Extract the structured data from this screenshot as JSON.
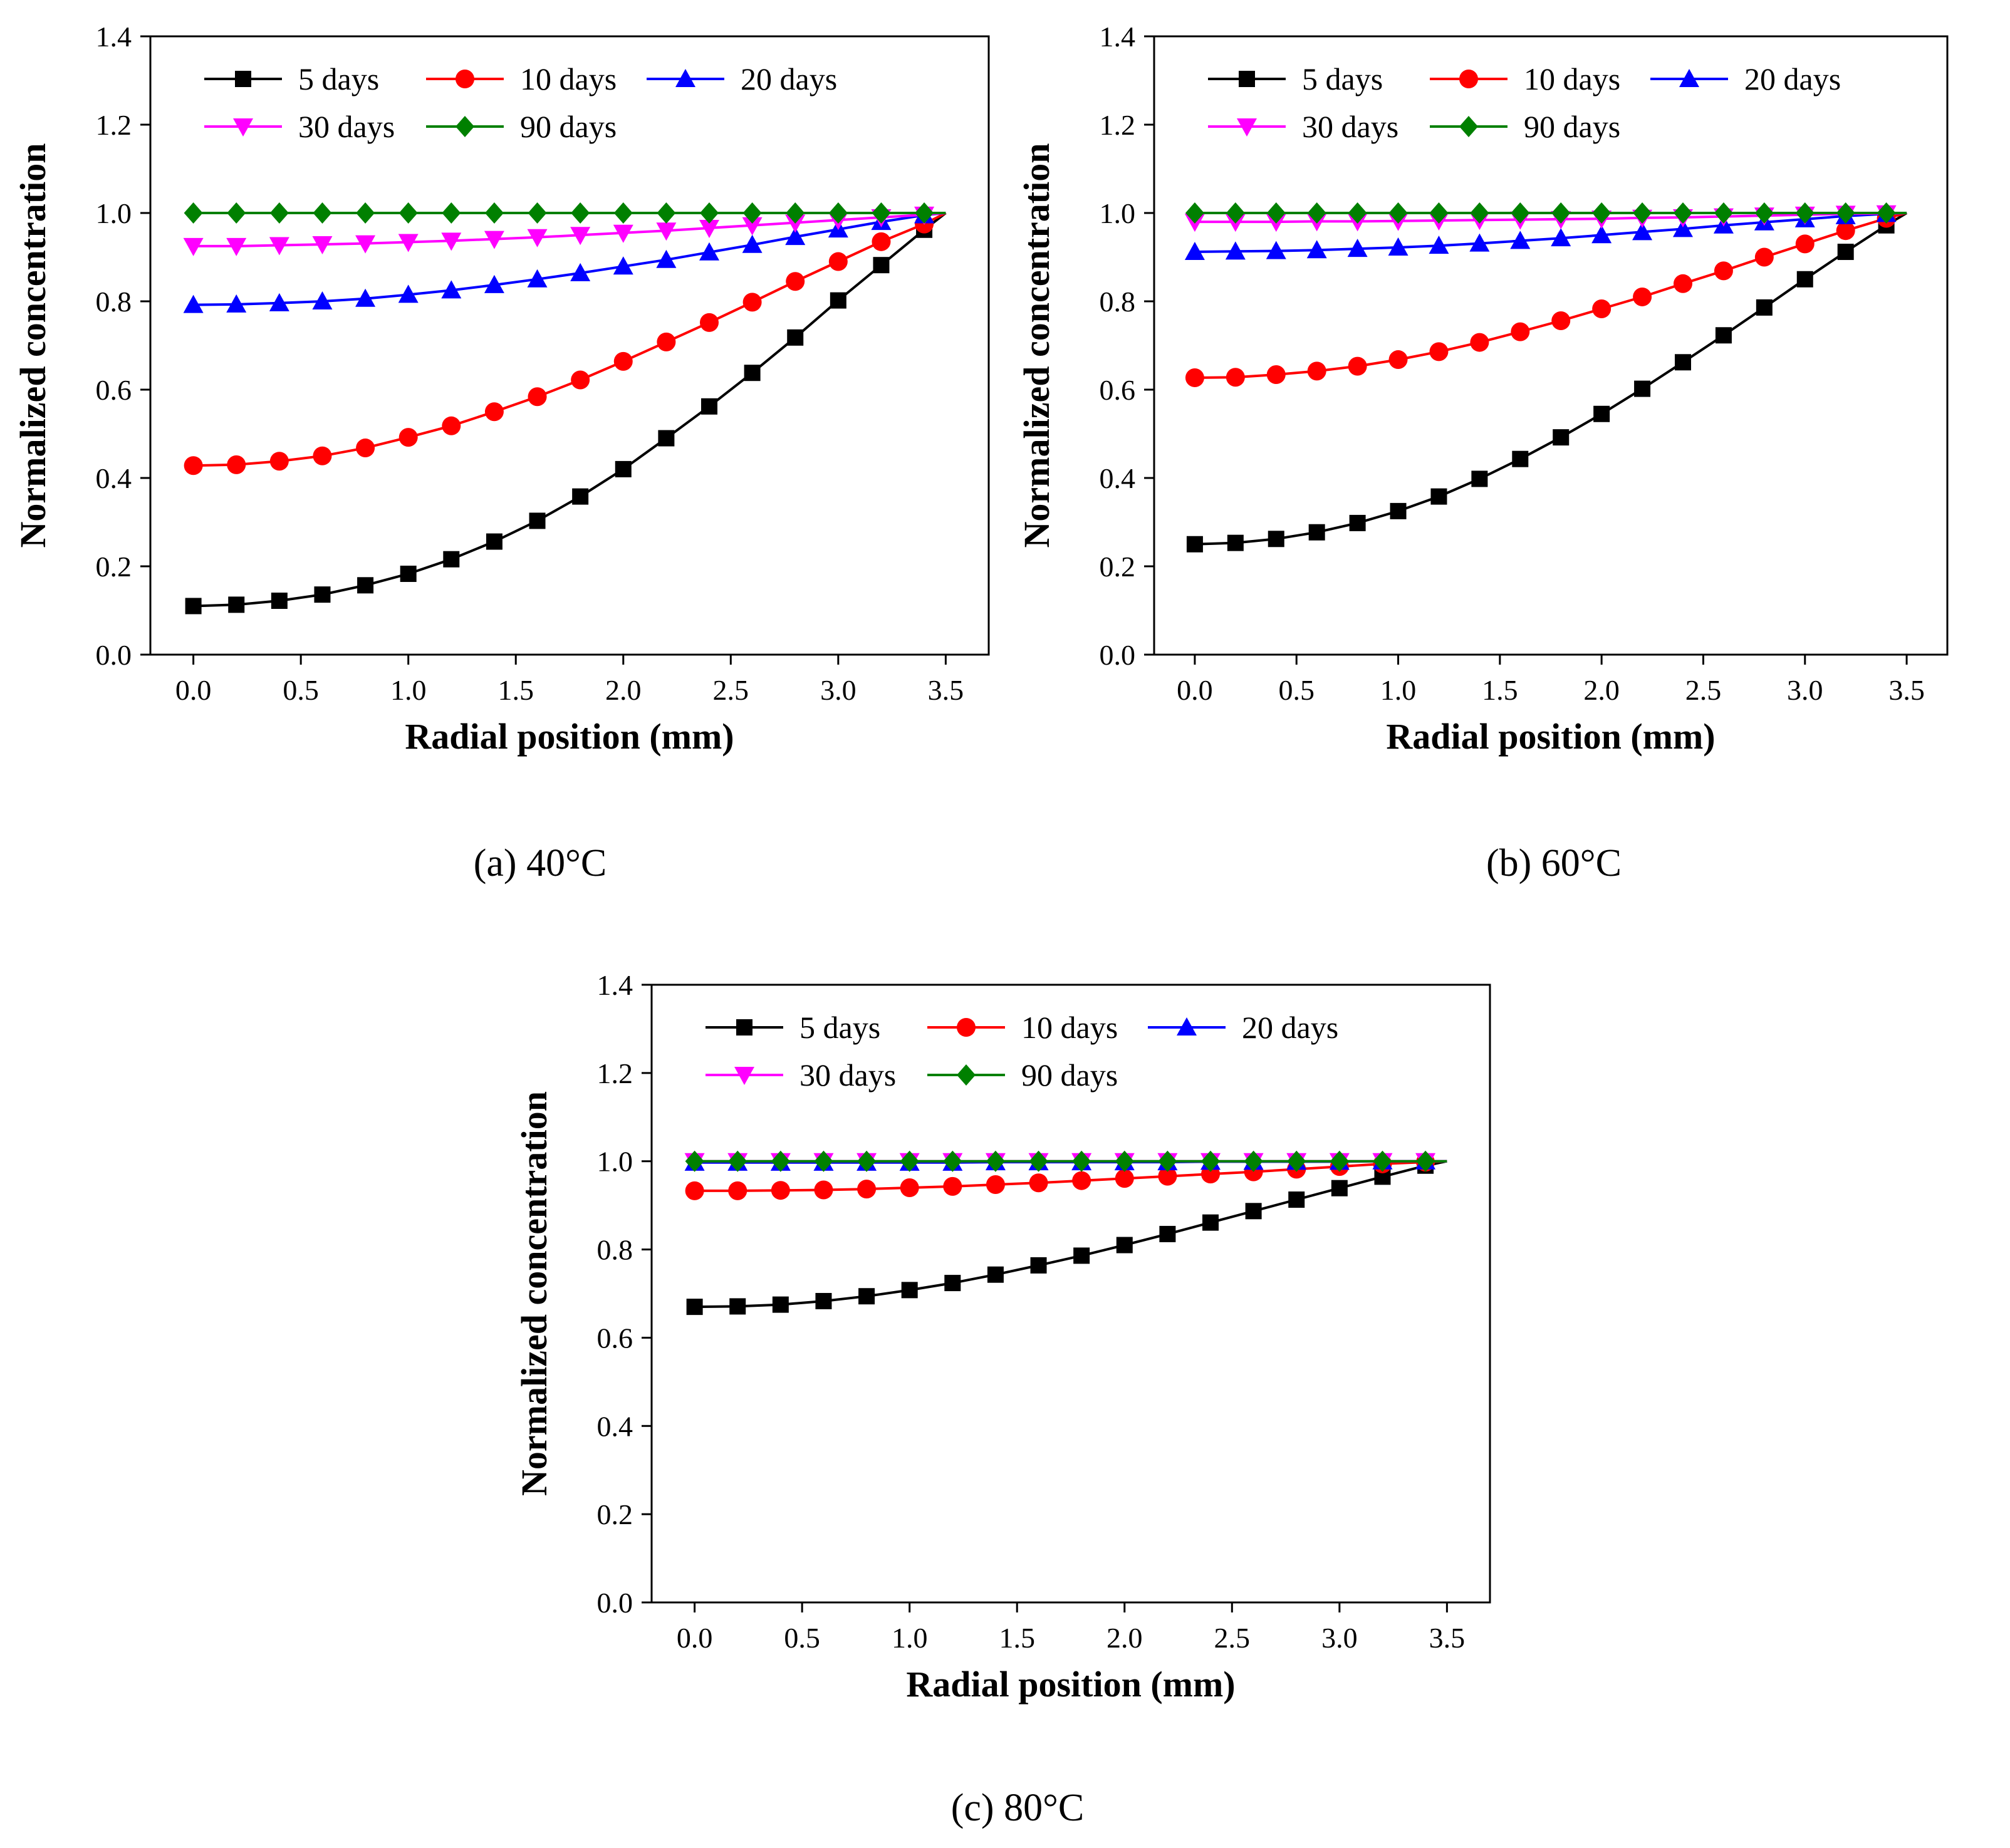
{
  "chart_data": [
    {
      "type": "line",
      "caption": "(a) 40°C",
      "xlabel": "Radial position (mm)",
      "ylabel": "Normalized concentration",
      "xlim": [
        -0.2,
        3.7
      ],
      "ylim": [
        0.0,
        1.4
      ],
      "xticks": [
        "0.0",
        "0.5",
        "1.0",
        "1.5",
        "2.0",
        "2.5",
        "3.0",
        "3.5"
      ],
      "yticks": [
        "0.0",
        "0.2",
        "0.4",
        "0.6",
        "0.8",
        "1.0",
        "1.2",
        "1.4"
      ],
      "legend_position": "top",
      "x": [
        0.0,
        0.2,
        0.4,
        0.6,
        0.8,
        1.0,
        1.2,
        1.4,
        1.6,
        1.8,
        2.0,
        2.2,
        2.4,
        2.6,
        2.8,
        3.0,
        3.2,
        3.4,
        3.5
      ],
      "series": [
        {
          "name": "5 days",
          "color": "#000000",
          "marker": "square",
          "values": [
            0.11,
            0.113,
            0.122,
            0.136,
            0.157,
            0.183,
            0.216,
            0.256,
            0.303,
            0.358,
            0.42,
            0.49,
            0.562,
            0.638,
            0.718,
            0.802,
            0.882,
            0.962,
            1.0
          ]
        },
        {
          "name": "10 days",
          "color": "#ff0000",
          "marker": "circle",
          "values": [
            0.428,
            0.43,
            0.438,
            0.45,
            0.468,
            0.492,
            0.518,
            0.55,
            0.584,
            0.622,
            0.664,
            0.708,
            0.752,
            0.798,
            0.845,
            0.89,
            0.935,
            0.975,
            1.0
          ]
        },
        {
          "name": "20 days",
          "color": "#0000ff",
          "marker": "triangle-up",
          "values": [
            0.792,
            0.793,
            0.796,
            0.8,
            0.806,
            0.815,
            0.825,
            0.837,
            0.85,
            0.864,
            0.879,
            0.894,
            0.911,
            0.928,
            0.946,
            0.963,
            0.98,
            0.995,
            1.0
          ]
        },
        {
          "name": "30 days",
          "color": "#ff00ff",
          "marker": "triangle-down",
          "values": [
            0.925,
            0.925,
            0.927,
            0.929,
            0.931,
            0.934,
            0.937,
            0.941,
            0.945,
            0.95,
            0.955,
            0.96,
            0.966,
            0.972,
            0.978,
            0.984,
            0.99,
            0.996,
            1.0
          ]
        },
        {
          "name": "90 days",
          "color": "#008000",
          "marker": "diamond",
          "values": [
            1.0,
            1.0,
            1.0,
            1.0,
            1.0,
            1.0,
            1.0,
            1.0,
            1.0,
            1.0,
            1.0,
            1.0,
            1.0,
            1.0,
            1.0,
            1.0,
            1.0,
            1.0,
            1.0
          ]
        }
      ]
    },
    {
      "type": "line",
      "caption": "(b) 60°C",
      "xlabel": "Radial position (mm)",
      "ylabel": "Normalized concentration",
      "xlim": [
        -0.2,
        3.7
      ],
      "ylim": [
        0.0,
        1.4
      ],
      "xticks": [
        "0.0",
        "0.5",
        "1.0",
        "1.5",
        "2.0",
        "2.5",
        "3.0",
        "3.5"
      ],
      "yticks": [
        "0.0",
        "0.2",
        "0.4",
        "0.6",
        "0.8",
        "1.0",
        "1.2",
        "1.4"
      ],
      "legend_position": "top",
      "x": [
        0.0,
        0.2,
        0.4,
        0.6,
        0.8,
        1.0,
        1.2,
        1.4,
        1.6,
        1.8,
        2.0,
        2.2,
        2.4,
        2.6,
        2.8,
        3.0,
        3.2,
        3.4,
        3.5
      ],
      "series": [
        {
          "name": "5 days",
          "color": "#000000",
          "marker": "square",
          "values": [
            0.25,
            0.253,
            0.262,
            0.277,
            0.298,
            0.325,
            0.358,
            0.398,
            0.443,
            0.492,
            0.545,
            0.602,
            0.662,
            0.723,
            0.786,
            0.85,
            0.912,
            0.972,
            1.0
          ]
        },
        {
          "name": "10 days",
          "color": "#ff0000",
          "marker": "circle",
          "values": [
            0.627,
            0.628,
            0.634,
            0.642,
            0.653,
            0.668,
            0.686,
            0.707,
            0.731,
            0.756,
            0.783,
            0.81,
            0.84,
            0.869,
            0.9,
            0.93,
            0.96,
            0.988,
            1.0
          ]
        },
        {
          "name": "20 days",
          "color": "#0000ff",
          "marker": "triangle-up",
          "values": [
            0.912,
            0.913,
            0.914,
            0.916,
            0.919,
            0.922,
            0.926,
            0.931,
            0.937,
            0.943,
            0.95,
            0.957,
            0.964,
            0.972,
            0.979,
            0.986,
            0.993,
            0.998,
            1.0
          ]
        },
        {
          "name": "30 days",
          "color": "#ff00ff",
          "marker": "triangle-down",
          "values": [
            0.98,
            0.98,
            0.98,
            0.981,
            0.981,
            0.982,
            0.983,
            0.984,
            0.985,
            0.986,
            0.987,
            0.989,
            0.99,
            0.992,
            0.994,
            0.996,
            0.998,
            0.999,
            1.0
          ]
        },
        {
          "name": "90 days",
          "color": "#008000",
          "marker": "diamond",
          "values": [
            1.0,
            1.0,
            1.0,
            1.0,
            1.0,
            1.0,
            1.0,
            1.0,
            1.0,
            1.0,
            1.0,
            1.0,
            1.0,
            1.0,
            1.0,
            1.0,
            1.0,
            1.0,
            1.0
          ]
        }
      ]
    },
    {
      "type": "line",
      "caption": "(c) 80°C",
      "xlabel": "Radial position (mm)",
      "ylabel": "Normalized concentration",
      "xlim": [
        -0.2,
        3.7
      ],
      "ylim": [
        0.0,
        1.4
      ],
      "xticks": [
        "0.0",
        "0.5",
        "1.0",
        "1.5",
        "2.0",
        "2.5",
        "3.0",
        "3.5"
      ],
      "yticks": [
        "0.0",
        "0.2",
        "0.4",
        "0.6",
        "0.8",
        "1.0",
        "1.2",
        "1.4"
      ],
      "legend_position": "top",
      "x": [
        0.0,
        0.2,
        0.4,
        0.6,
        0.8,
        1.0,
        1.2,
        1.4,
        1.6,
        1.8,
        2.0,
        2.2,
        2.4,
        2.6,
        2.8,
        3.0,
        3.2,
        3.4,
        3.5
      ],
      "series": [
        {
          "name": "5 days",
          "color": "#000000",
          "marker": "square",
          "values": [
            0.67,
            0.671,
            0.675,
            0.683,
            0.694,
            0.708,
            0.724,
            0.743,
            0.764,
            0.786,
            0.81,
            0.835,
            0.861,
            0.887,
            0.913,
            0.939,
            0.965,
            0.99,
            1.0
          ]
        },
        {
          "name": "10 days",
          "color": "#ff0000",
          "marker": "circle",
          "values": [
            0.933,
            0.933,
            0.934,
            0.935,
            0.937,
            0.94,
            0.943,
            0.947,
            0.951,
            0.956,
            0.961,
            0.966,
            0.971,
            0.976,
            0.982,
            0.988,
            0.994,
            0.998,
            1.0
          ]
        },
        {
          "name": "20 days",
          "color": "#0000ff",
          "marker": "triangle-up",
          "values": [
            0.997,
            0.997,
            0.997,
            0.997,
            0.997,
            0.997,
            0.997,
            0.998,
            0.998,
            0.998,
            0.998,
            0.998,
            0.999,
            0.999,
            0.999,
            0.999,
            1.0,
            1.0,
            1.0
          ]
        },
        {
          "name": "30 days",
          "color": "#ff00ff",
          "marker": "triangle-down",
          "values": [
            1.0,
            1.0,
            1.0,
            1.0,
            1.0,
            1.0,
            1.0,
            1.0,
            1.0,
            1.0,
            1.0,
            1.0,
            1.0,
            1.0,
            1.0,
            1.0,
            1.0,
            1.0,
            1.0
          ]
        },
        {
          "name": "90 days",
          "color": "#008000",
          "marker": "diamond",
          "values": [
            1.0,
            1.0,
            1.0,
            1.0,
            1.0,
            1.0,
            1.0,
            1.0,
            1.0,
            1.0,
            1.0,
            1.0,
            1.0,
            1.0,
            1.0,
            1.0,
            1.0,
            1.0,
            1.0
          ]
        }
      ]
    }
  ]
}
